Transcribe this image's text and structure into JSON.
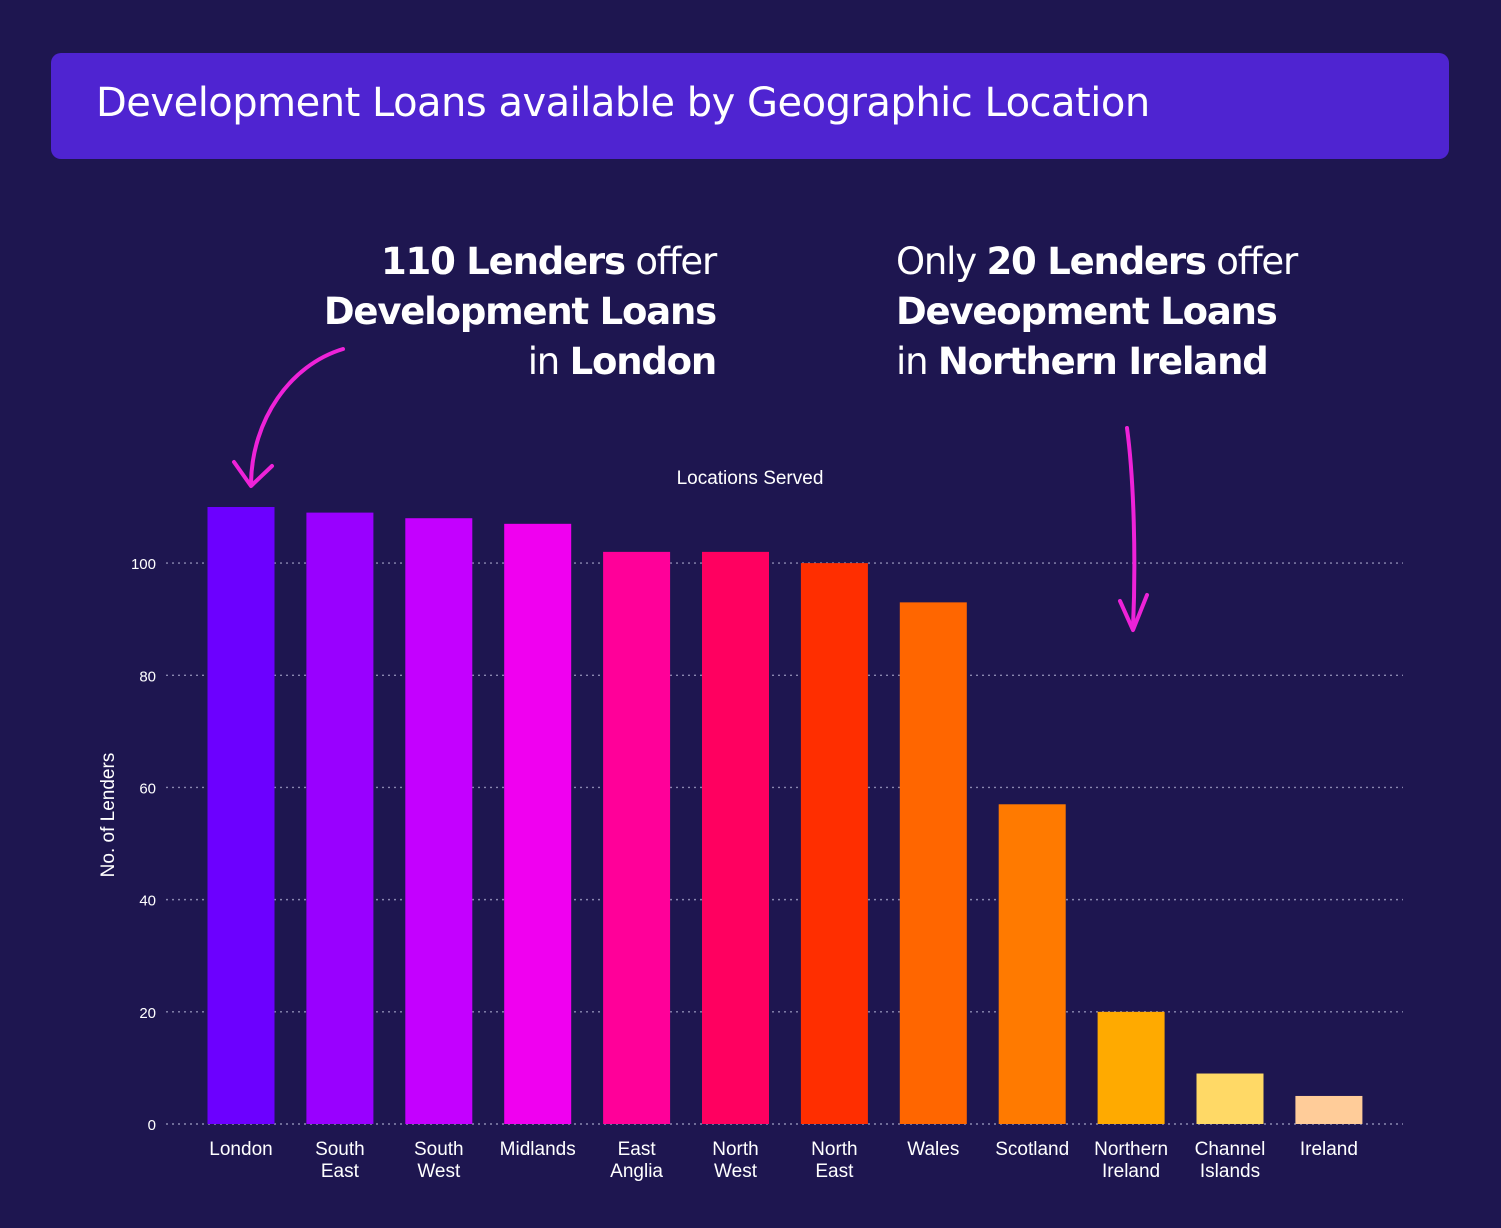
{
  "title": "Development Loans available by Geographic Location",
  "callouts": {
    "left": {
      "l1_bold": "110 Lenders",
      "l1_rest": " offer",
      "l2_bold": "Development Loans",
      "l3_pre": "in ",
      "l3_bold": "London"
    },
    "right": {
      "l1_pre": "Only ",
      "l1_bold": "20 Lenders",
      "l1_rest": " offer",
      "l2_bold": "Deveopment Loans",
      "l3_pre": "in ",
      "l3_bold": "Northern Ireland"
    }
  },
  "colors": {
    "background": "#1e1650",
    "banner": "#4f24d1",
    "arrow": "#ee22d8",
    "grid": "#8a88b0"
  },
  "chart_data": {
    "type": "bar",
    "title": "Locations Served",
    "xlabel": "",
    "ylabel": "No. of Lenders",
    "ylim": [
      0,
      110
    ],
    "yticks": [
      0,
      20,
      40,
      60,
      80,
      100
    ],
    "grid": true,
    "categories": [
      [
        "London"
      ],
      [
        "South",
        "East"
      ],
      [
        "South",
        "West"
      ],
      [
        "Midlands"
      ],
      [
        "East",
        "Anglia"
      ],
      [
        "North",
        "West"
      ],
      [
        "North",
        "East"
      ],
      [
        "Wales"
      ],
      [
        "Scotland"
      ],
      [
        "Northern",
        "Ireland"
      ],
      [
        "Channel",
        "Islands"
      ],
      [
        "Ireland"
      ]
    ],
    "values": [
      110,
      109,
      108,
      107,
      102,
      102,
      100,
      93,
      57,
      20,
      9,
      5
    ],
    "bar_colors": [
      "#6c00ff",
      "#9900ff",
      "#c400ff",
      "#f000f0",
      "#ff0099",
      "#ff0060",
      "#ff2e00",
      "#ff6600",
      "#ff7a00",
      "#ffaa00",
      "#ffd966",
      "#ffcc99"
    ]
  }
}
